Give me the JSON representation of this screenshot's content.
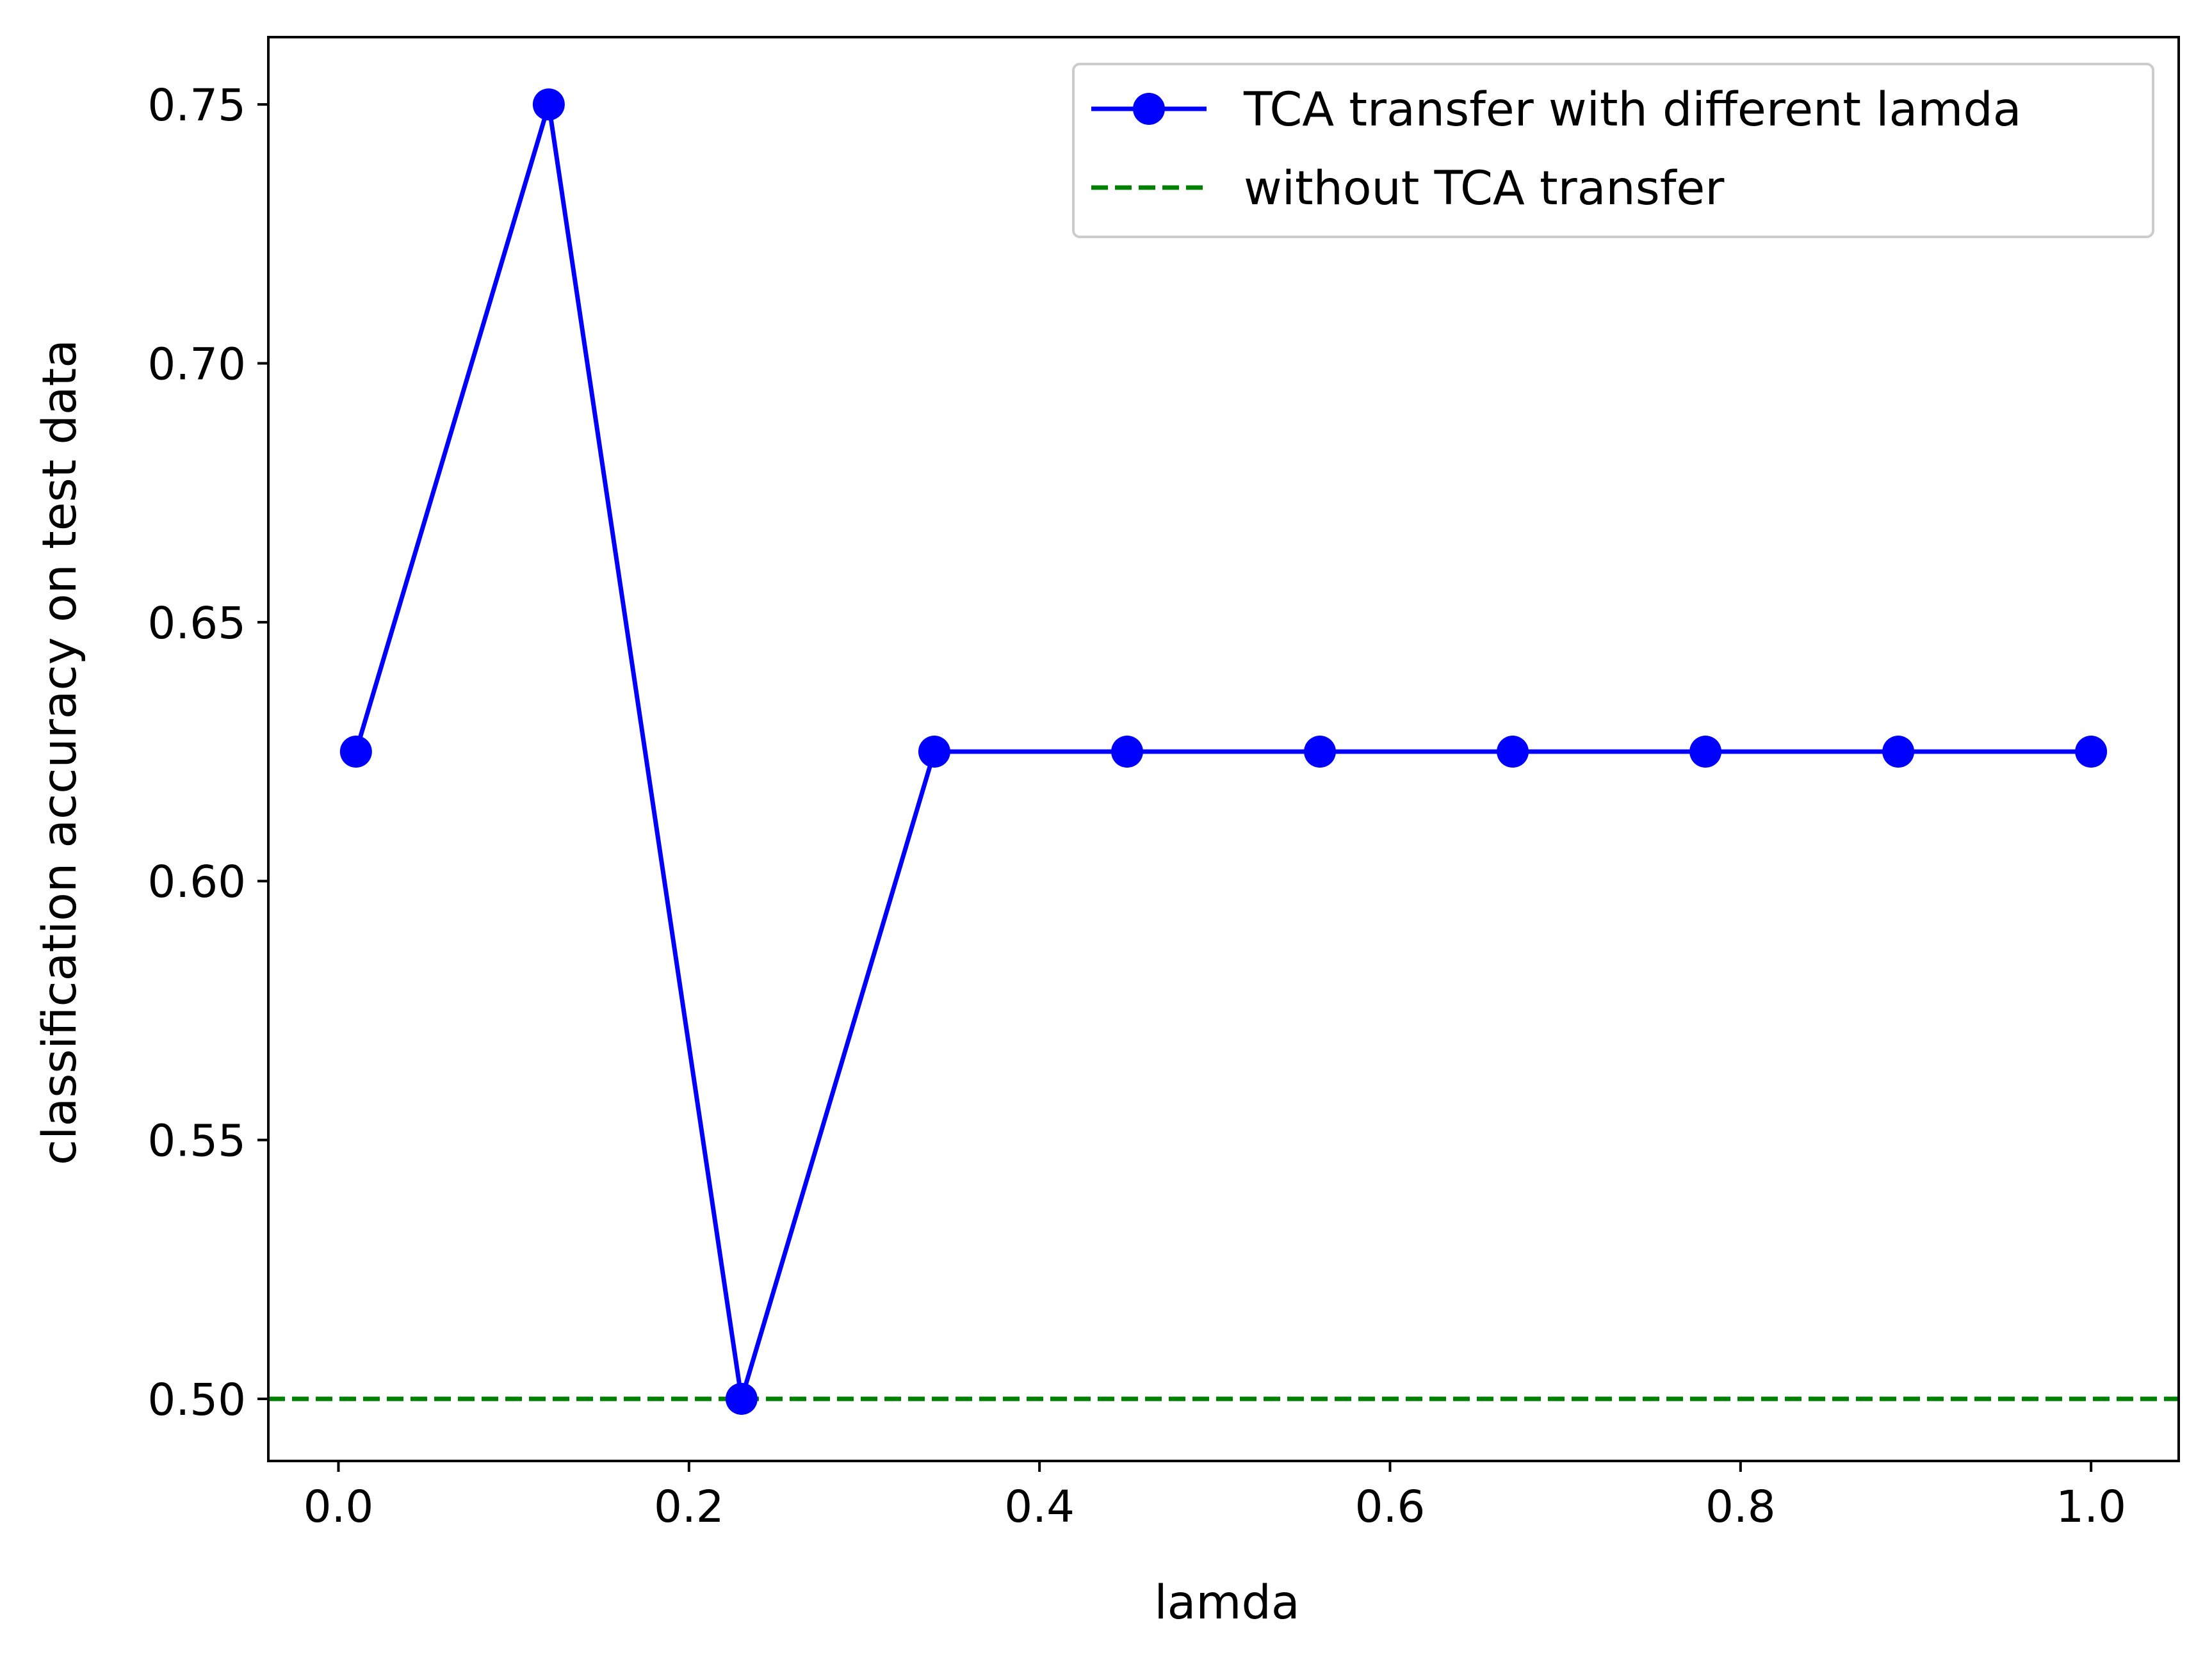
{
  "chart_data": {
    "type": "line",
    "title": "",
    "xlabel": "lamda",
    "ylabel": "classification accuracy on test data",
    "xlim": [
      -0.04,
      1.05
    ],
    "ylim": [
      0.488,
      0.763
    ],
    "xticks": [
      0.0,
      0.2,
      0.4,
      0.6,
      0.8,
      1.0
    ],
    "xtick_labels": [
      "0.0",
      "0.2",
      "0.4",
      "0.6",
      "0.8",
      "1.0"
    ],
    "yticks": [
      0.5,
      0.55,
      0.6,
      0.65,
      0.7,
      0.75
    ],
    "ytick_labels": [
      "0.50",
      "0.55",
      "0.60",
      "0.65",
      "0.70",
      "0.75"
    ],
    "grid": false,
    "legend_position": "top-right",
    "series": [
      {
        "name": "TCA transfer with different lamda",
        "style": "solid-line-with-circle-markers",
        "color": "#0000ff",
        "x": [
          0.01,
          0.12,
          0.23,
          0.34,
          0.45,
          0.56,
          0.67,
          0.78,
          0.89,
          1.0
        ],
        "y": [
          0.625,
          0.75,
          0.5,
          0.625,
          0.625,
          0.625,
          0.625,
          0.625,
          0.625,
          0.625
        ]
      },
      {
        "name": "without TCA transfer",
        "style": "dashed-horizontal-line",
        "color": "#008000",
        "y": 0.5
      }
    ]
  }
}
